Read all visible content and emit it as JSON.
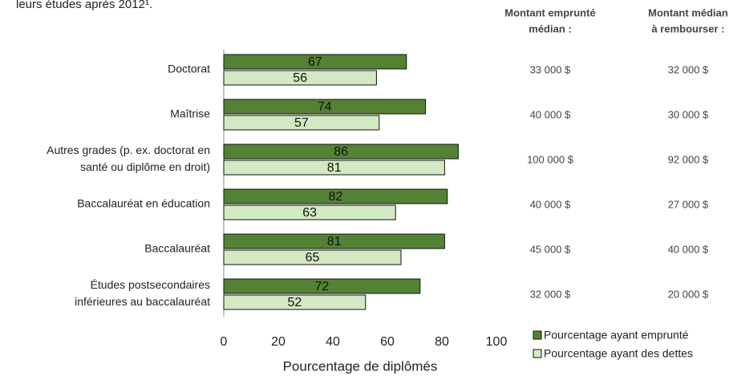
{
  "chart_data": {
    "type": "hbar",
    "subtitle": "leurs études après 2012¹.",
    "x_label": "Pourcentage de diplômés",
    "categories": [
      [
        "Doctorat"
      ],
      [
        "Maîtrise"
      ],
      [
        "Autres grades (p. ex. doctorat en",
        "santé ou diplôme en droit)"
      ],
      [
        "Baccalauréat en éducation"
      ],
      [
        "Baccalauréat"
      ],
      [
        "Études postsecondaires",
        "inférieures au baccalauréat"
      ]
    ],
    "series": [
      {
        "name": "Pourcentage ayant emprunté",
        "color": "#548235",
        "values": [
          67,
          74,
          86,
          82,
          81,
          72
        ]
      },
      {
        "name": "Pourcentage ayant des dettes",
        "color": "#d3e9c4",
        "values": [
          56,
          57,
          81,
          63,
          65,
          52
        ]
      }
    ],
    "xlim": [
      0,
      100
    ],
    "xticks": [
      0,
      20,
      40,
      60,
      80,
      100
    ],
    "legend": "lower right",
    "columns": [
      {
        "header": [
          "Montant emprunté",
          "médian :"
        ],
        "values": [
          "33 000 $",
          "40 000 $",
          "100 000 $",
          "40 000 $",
          "45 000 $",
          "32 000 $"
        ]
      },
      {
        "header": [
          "Montant médian",
          "à rembourser :"
        ],
        "values": [
          "32 000 $",
          "30 000 $",
          "92 000 $",
          "27 000 $",
          "40 000 $",
          "20 000 $"
        ]
      }
    ]
  }
}
